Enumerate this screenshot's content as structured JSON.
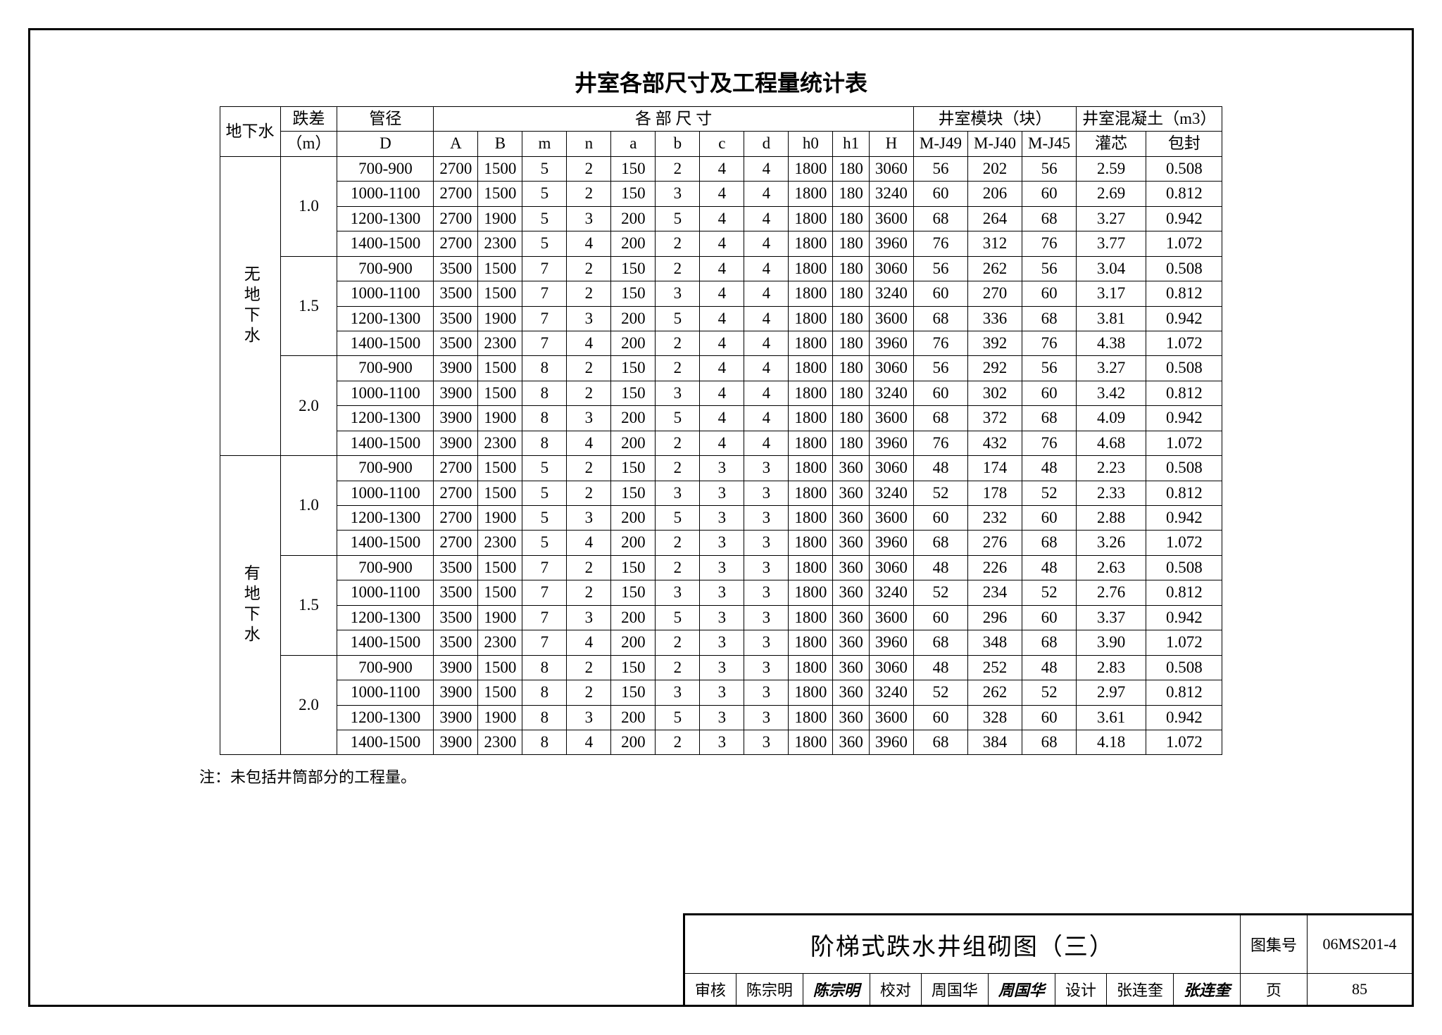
{
  "title": "井室各部尺寸及工程量统计表",
  "note": "注：未包括井筒部分的工程量。",
  "header": {
    "group1": "地下水",
    "drop": "跌差",
    "drop_unit": "（m）",
    "pipe": "管径",
    "pipe_D": "D",
    "dims": "各 部 尺 寸",
    "mods": "井室模块（块）",
    "conc": "井室混凝土（m3）",
    "cols": [
      "A",
      "B",
      "m",
      "n",
      "a",
      "b",
      "c",
      "d",
      "h0",
      "h1",
      "H",
      "M-J49",
      "M-J40",
      "M-J45",
      "灌芯",
      "包封"
    ]
  },
  "sections": [
    {
      "label": "无地下水",
      "drops": [
        "1.0",
        "1.5",
        "2.0"
      ]
    },
    {
      "label": "有地下水",
      "drops": [
        "1.0",
        "1.5",
        "2.0"
      ]
    }
  ],
  "rows": [
    [
      "700-900",
      "2700",
      "1500",
      "5",
      "2",
      "150",
      "2",
      "4",
      "4",
      "1800",
      "180",
      "3060",
      "56",
      "202",
      "56",
      "2.59",
      "0.508"
    ],
    [
      "1000-1100",
      "2700",
      "1500",
      "5",
      "2",
      "150",
      "3",
      "4",
      "4",
      "1800",
      "180",
      "3240",
      "60",
      "206",
      "60",
      "2.69",
      "0.812"
    ],
    [
      "1200-1300",
      "2700",
      "1900",
      "5",
      "3",
      "200",
      "5",
      "4",
      "4",
      "1800",
      "180",
      "3600",
      "68",
      "264",
      "68",
      "3.27",
      "0.942"
    ],
    [
      "1400-1500",
      "2700",
      "2300",
      "5",
      "4",
      "200",
      "2",
      "4",
      "4",
      "1800",
      "180",
      "3960",
      "76",
      "312",
      "76",
      "3.77",
      "1.072"
    ],
    [
      "700-900",
      "3500",
      "1500",
      "7",
      "2",
      "150",
      "2",
      "4",
      "4",
      "1800",
      "180",
      "3060",
      "56",
      "262",
      "56",
      "3.04",
      "0.508"
    ],
    [
      "1000-1100",
      "3500",
      "1500",
      "7",
      "2",
      "150",
      "3",
      "4",
      "4",
      "1800",
      "180",
      "3240",
      "60",
      "270",
      "60",
      "3.17",
      "0.812"
    ],
    [
      "1200-1300",
      "3500",
      "1900",
      "7",
      "3",
      "200",
      "5",
      "4",
      "4",
      "1800",
      "180",
      "3600",
      "68",
      "336",
      "68",
      "3.81",
      "0.942"
    ],
    [
      "1400-1500",
      "3500",
      "2300",
      "7",
      "4",
      "200",
      "2",
      "4",
      "4",
      "1800",
      "180",
      "3960",
      "76",
      "392",
      "76",
      "4.38",
      "1.072"
    ],
    [
      "700-900",
      "3900",
      "1500",
      "8",
      "2",
      "150",
      "2",
      "4",
      "4",
      "1800",
      "180",
      "3060",
      "56",
      "292",
      "56",
      "3.27",
      "0.508"
    ],
    [
      "1000-1100",
      "3900",
      "1500",
      "8",
      "2",
      "150",
      "3",
      "4",
      "4",
      "1800",
      "180",
      "3240",
      "60",
      "302",
      "60",
      "3.42",
      "0.812"
    ],
    [
      "1200-1300",
      "3900",
      "1900",
      "8",
      "3",
      "200",
      "5",
      "4",
      "4",
      "1800",
      "180",
      "3600",
      "68",
      "372",
      "68",
      "4.09",
      "0.942"
    ],
    [
      "1400-1500",
      "3900",
      "2300",
      "8",
      "4",
      "200",
      "2",
      "4",
      "4",
      "1800",
      "180",
      "3960",
      "76",
      "432",
      "76",
      "4.68",
      "1.072"
    ],
    [
      "700-900",
      "2700",
      "1500",
      "5",
      "2",
      "150",
      "2",
      "3",
      "3",
      "1800",
      "360",
      "3060",
      "48",
      "174",
      "48",
      "2.23",
      "0.508"
    ],
    [
      "1000-1100",
      "2700",
      "1500",
      "5",
      "2",
      "150",
      "3",
      "3",
      "3",
      "1800",
      "360",
      "3240",
      "52",
      "178",
      "52",
      "2.33",
      "0.812"
    ],
    [
      "1200-1300",
      "2700",
      "1900",
      "5",
      "3",
      "200",
      "5",
      "3",
      "3",
      "1800",
      "360",
      "3600",
      "60",
      "232",
      "60",
      "2.88",
      "0.942"
    ],
    [
      "1400-1500",
      "2700",
      "2300",
      "5",
      "4",
      "200",
      "2",
      "3",
      "3",
      "1800",
      "360",
      "3960",
      "68",
      "276",
      "68",
      "3.26",
      "1.072"
    ],
    [
      "700-900",
      "3500",
      "1500",
      "7",
      "2",
      "150",
      "2",
      "3",
      "3",
      "1800",
      "360",
      "3060",
      "48",
      "226",
      "48",
      "2.63",
      "0.508"
    ],
    [
      "1000-1100",
      "3500",
      "1500",
      "7",
      "2",
      "150",
      "3",
      "3",
      "3",
      "1800",
      "360",
      "3240",
      "52",
      "234",
      "52",
      "2.76",
      "0.812"
    ],
    [
      "1200-1300",
      "3500",
      "1900",
      "7",
      "3",
      "200",
      "5",
      "3",
      "3",
      "1800",
      "360",
      "3600",
      "60",
      "296",
      "60",
      "3.37",
      "0.942"
    ],
    [
      "1400-1500",
      "3500",
      "2300",
      "7",
      "4",
      "200",
      "2",
      "3",
      "3",
      "1800",
      "360",
      "3960",
      "68",
      "348",
      "68",
      "3.90",
      "1.072"
    ],
    [
      "700-900",
      "3900",
      "1500",
      "8",
      "2",
      "150",
      "2",
      "3",
      "3",
      "1800",
      "360",
      "3060",
      "48",
      "252",
      "48",
      "2.83",
      "0.508"
    ],
    [
      "1000-1100",
      "3900",
      "1500",
      "8",
      "2",
      "150",
      "3",
      "3",
      "3",
      "1800",
      "360",
      "3240",
      "52",
      "262",
      "52",
      "2.97",
      "0.812"
    ],
    [
      "1200-1300",
      "3900",
      "1900",
      "8",
      "3",
      "200",
      "5",
      "3",
      "3",
      "1800",
      "360",
      "3600",
      "60",
      "328",
      "60",
      "3.61",
      "0.942"
    ],
    [
      "1400-1500",
      "3900",
      "2300",
      "8",
      "4",
      "200",
      "2",
      "3",
      "3",
      "1800",
      "360",
      "3960",
      "68",
      "384",
      "68",
      "4.18",
      "1.072"
    ]
  ],
  "titleblock": {
    "drawing_title": "阶梯式跌水井组砌图（三）",
    "set_label": "图集号",
    "set_no": "06MS201-4",
    "check_l": "审核",
    "check_n": "陈宗明",
    "check_s": "陈宗明",
    "proof_l": "校对",
    "proof_n": "周国华",
    "proof_s": "周国华",
    "design_l": "设计",
    "design_n": "张连奎",
    "design_s": "张连奎",
    "page_l": "页",
    "page_n": "85"
  }
}
